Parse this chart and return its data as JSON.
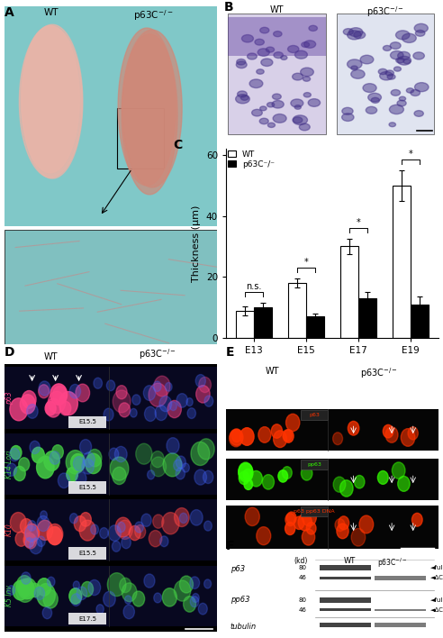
{
  "chart_C": {
    "categories": [
      "E13",
      "E15",
      "E17",
      "E19"
    ],
    "wt_values": [
      9,
      18,
      30,
      50
    ],
    "wt_errors": [
      1.5,
      1.5,
      2.5,
      5
    ],
    "ko_values": [
      10,
      7,
      13,
      11
    ],
    "ko_errors": [
      1.5,
      1.0,
      2.0,
      2.5
    ],
    "ylabel": "Thickness (μm)",
    "ylim": [
      0,
      62
    ],
    "yticks": [
      0,
      20,
      40,
      60
    ],
    "legend_wt": "WT",
    "legend_ko": "p63C⁻/⁻",
    "significance": [
      "n.s.",
      "*",
      "*",
      "*"
    ],
    "bar_width": 0.35,
    "wt_color": "white",
    "ko_color": "black",
    "edge_color": "black"
  },
  "panel_bg": "#ffffff",
  "label_fontsize": 10,
  "tick_fontsize": 7.5,
  "axis_fontsize": 8,
  "row_labels_D": [
    "p63",
    "K14 Lori",
    "K10",
    "K5 Inv"
  ],
  "row_colors_D": [
    "#ff3366",
    "#22bb22",
    "#ff3333",
    "#22bb22"
  ],
  "row_labels_E": [
    "p63",
    "pp63",
    "p63 pp63 DNA"
  ],
  "row_colors_E": [
    "#ff4444",
    "#44ff44",
    "#ff4444"
  ]
}
